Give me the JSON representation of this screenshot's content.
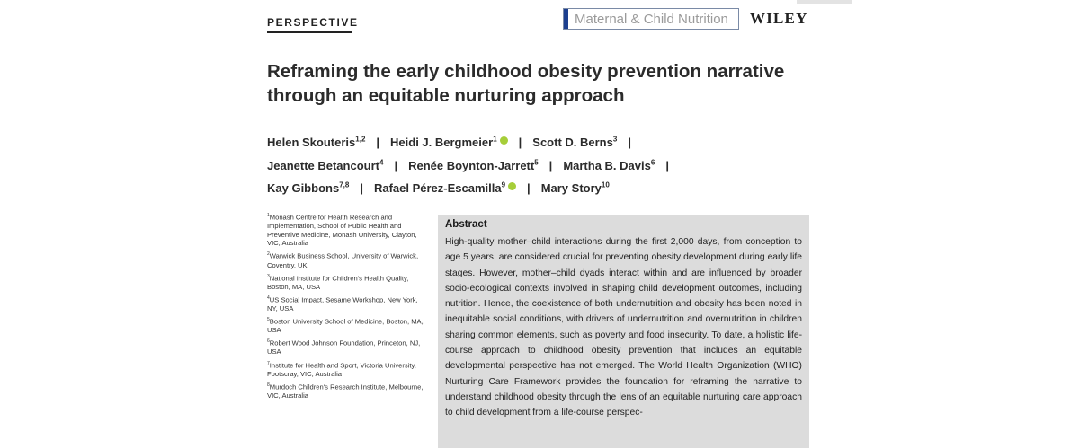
{
  "header": {
    "article_type": "PERSPECTIVE",
    "journal_name": "Maternal & Child Nutrition",
    "publisher": "WILEY"
  },
  "article": {
    "title": "Reframing the early childhood obesity prevention narrative through an equitable nurturing approach"
  },
  "authors": [
    {
      "name": "Helen Skouteris",
      "affil": "1,2",
      "orcid": false
    },
    {
      "name": "Heidi J. Bergmeier",
      "affil": "1",
      "orcid": true
    },
    {
      "name": "Scott D. Berns",
      "affil": "3",
      "orcid": false
    },
    {
      "name": "Jeanette Betancourt",
      "affil": "4",
      "orcid": false
    },
    {
      "name": "Renée Boynton-Jarrett",
      "affil": "5",
      "orcid": false
    },
    {
      "name": "Martha B. Davis",
      "affil": "6",
      "orcid": false
    },
    {
      "name": "Kay Gibbons",
      "affil": "7,8",
      "orcid": false
    },
    {
      "name": "Rafael Pérez-Escamilla",
      "affil": "9",
      "orcid": true
    },
    {
      "name": "Mary Story",
      "affil": "10",
      "orcid": false
    }
  ],
  "affiliations": [
    {
      "num": "1",
      "text": "Monash Centre for Health Research and Implementation, School of Public Health and Preventive Medicine, Monash University, Clayton, VIC, Australia"
    },
    {
      "num": "2",
      "text": "Warwick Business School, University of Warwick, Coventry, UK"
    },
    {
      "num": "3",
      "text": "National Institute for Children's Health Quality, Boston, MA, USA"
    },
    {
      "num": "4",
      "text": "US Social Impact, Sesame Workshop, New York, NY, USA"
    },
    {
      "num": "5",
      "text": "Boston University School of Medicine, Boston, MA, USA"
    },
    {
      "num": "6",
      "text": "Robert Wood Johnson Foundation, Princeton, NJ, USA"
    },
    {
      "num": "7",
      "text": "Institute for Health and Sport, Victoria University, Footscray, VIC, Australia"
    },
    {
      "num": "8",
      "text": "Murdoch Children's Research Institute, Melbourne, VIC, Australia"
    }
  ],
  "abstract": {
    "heading": "Abstract",
    "text": "High-quality mother–child interactions during the first 2,000 days, from conception to age 5 years, are considered crucial for preventing obesity development during early life stages. However, mother–child dyads interact within and are influenced by broader socio-ecological contexts involved in shaping child development outcomes, including nutrition. Hence, the coexistence of both undernutrition and obesity has been noted in inequitable social conditions, with drivers of undernutrition and overnutrition in children sharing common elements, such as poverty and food insecurity. To date, a holistic life-course approach to childhood obesity prevention that includes an equitable developmental perspective has not emerged. The World Health Organization (WHO) Nurturing Care Framework provides the foundation for reframing the narrative to understand childhood obesity through the lens of an equitable nurturing care approach to child development from a life-course perspec-"
  }
}
